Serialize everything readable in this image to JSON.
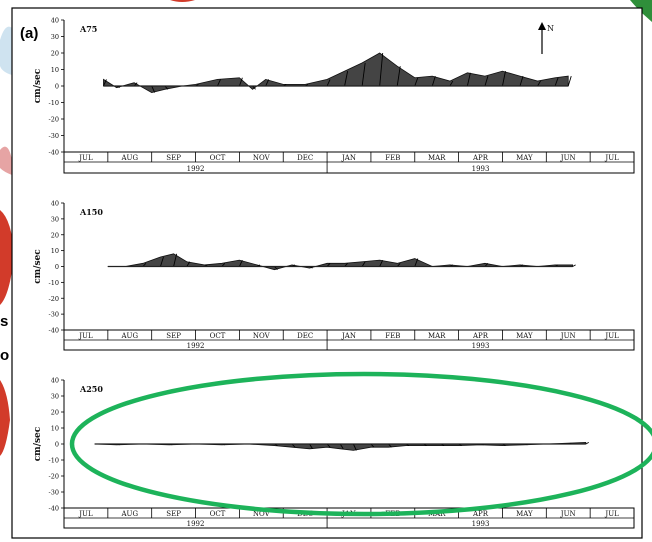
{
  "figure": {
    "panel_label": "(a)",
    "north_label": "N",
    "side_fragments": [
      "s",
      "o"
    ]
  },
  "chart_data": [
    {
      "type": "area",
      "station": "A75",
      "ylabel": "cm/sec",
      "ylim": [
        -40,
        40
      ],
      "yticks": [
        40,
        30,
        20,
        10,
        0,
        -10,
        -20,
        -30,
        -40
      ],
      "months": [
        "JUL",
        "AUG",
        "SEP",
        "OCT",
        "NOV",
        "DEC",
        "JAN",
        "FEB",
        "MAR",
        "APR",
        "MAY",
        "JUN",
        "JUL"
      ],
      "years": [
        "1992",
        "1993"
      ],
      "x_unit": "month index from Jul 1992",
      "series": [
        {
          "x": [
            0.9,
            1.2,
            1.6,
            2.0,
            2.3,
            2.7,
            3.0,
            3.5,
            4.0,
            4.3,
            4.6,
            5.0,
            5.5,
            6.0,
            6.4,
            6.8,
            7.2,
            7.6,
            8.0,
            8.4,
            8.8,
            9.2,
            9.6,
            10.0,
            10.4,
            10.8,
            11.2,
            11.5
          ],
          "y": [
            4,
            -1,
            2,
            -4,
            -2,
            0,
            1,
            4,
            5,
            -2,
            4,
            1,
            1,
            4,
            9,
            14,
            20,
            12,
            5,
            6,
            3,
            8,
            6,
            9,
            6,
            3,
            5,
            6
          ]
        }
      ],
      "highlighted": false
    },
    {
      "type": "area",
      "station": "A150",
      "ylabel": "cm/sec",
      "ylim": [
        -40,
        40
      ],
      "yticks": [
        40,
        30,
        20,
        10,
        0,
        -10,
        -20,
        -30,
        -40
      ],
      "months": [
        "JUL",
        "AUG",
        "SEP",
        "OCT",
        "NOV",
        "DEC",
        "JAN",
        "FEB",
        "MAR",
        "APR",
        "MAY",
        "JUN",
        "JUL"
      ],
      "years": [
        "1992",
        "1993"
      ],
      "x_unit": "month index from Jul 1992",
      "series": [
        {
          "x": [
            1.0,
            1.4,
            1.8,
            2.2,
            2.5,
            2.8,
            3.2,
            3.6,
            4.0,
            4.4,
            4.8,
            5.2,
            5.6,
            6.0,
            6.4,
            6.8,
            7.2,
            7.6,
            8.0,
            8.4,
            8.8,
            9.2,
            9.6,
            10.0,
            10.4,
            10.8,
            11.2,
            11.6
          ],
          "y": [
            0,
            0,
            2,
            6,
            8,
            3,
            1,
            2,
            4,
            1,
            -2,
            1,
            -1,
            2,
            2,
            3,
            4,
            2,
            5,
            0,
            1,
            0,
            2,
            0,
            1,
            0,
            1,
            1
          ]
        }
      ],
      "highlighted": false
    },
    {
      "type": "area",
      "station": "A250",
      "ylabel": "cm/sec",
      "ylim": [
        -40,
        40
      ],
      "yticks": [
        40,
        30,
        20,
        10,
        0,
        -10,
        -20,
        -30,
        -40
      ],
      "months": [
        "JUL",
        "AUG",
        "SEP",
        "OCT",
        "NOV",
        "DEC",
        "JAN",
        "FEB",
        "MAR",
        "APR",
        "MAY",
        "JUN",
        "JUL"
      ],
      "years": [
        "1992",
        "1993"
      ],
      "year_labels_as_printed": [
        "1992",
        "1993"
      ],
      "x_unit": "month index from Jul 1992",
      "series": [
        {
          "x": [
            0.7,
            1.2,
            1.8,
            2.4,
            3.0,
            3.6,
            4.2,
            4.8,
            5.2,
            5.6,
            6.0,
            6.3,
            6.6,
            7.0,
            7.4,
            7.8,
            8.2,
            8.6,
            9.0,
            9.5,
            10.0,
            10.5,
            11.0,
            11.5,
            11.9
          ],
          "y": [
            0,
            -0.5,
            0,
            -0.5,
            0,
            -0.5,
            0,
            -1,
            -2,
            -3,
            -2,
            -3,
            -4,
            -2,
            -2,
            -1,
            -1,
            -1,
            -1,
            -0.5,
            -1,
            -0.5,
            0,
            0.5,
            1
          ]
        }
      ],
      "highlighted": true,
      "highlight_color": "#1db35a"
    }
  ]
}
